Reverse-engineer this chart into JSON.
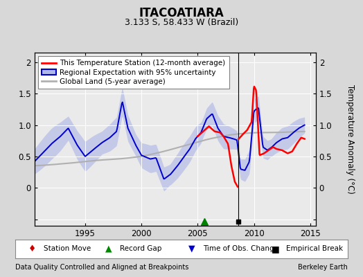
{
  "title": "ITACOATIARA",
  "subtitle": "3.133 S, 58.433 W (Brazil)",
  "ylabel": "Temperature Anomaly (°C)",
  "xlabel_left": "Data Quality Controlled and Aligned at Breakpoints",
  "xlabel_right": "Berkeley Earth",
  "xlim": [
    1990.5,
    2015.5
  ],
  "ylim": [
    -0.6,
    2.15
  ],
  "yticks": [
    -0.5,
    0.0,
    0.5,
    1.0,
    1.5,
    2.0
  ],
  "xticks": [
    1995,
    2000,
    2005,
    2010,
    2015
  ],
  "background_color": "#d8d8d8",
  "plot_background": "#eaeaea",
  "grid_color": "#ffffff",
  "station_color": "#ff0000",
  "regional_color": "#0000cc",
  "regional_fill_color": "#b0b8e8",
  "global_color": "#b0b0b0",
  "break_line_x": 2008.6,
  "record_gap_x": 2005.6,
  "empirical_break_x": 2008.6,
  "legend_item0": "This Temperature Station (12-month average)",
  "legend_item1": "Regional Expectation with 95% uncertainty",
  "legend_item2": "Global Land (5-year average)"
}
